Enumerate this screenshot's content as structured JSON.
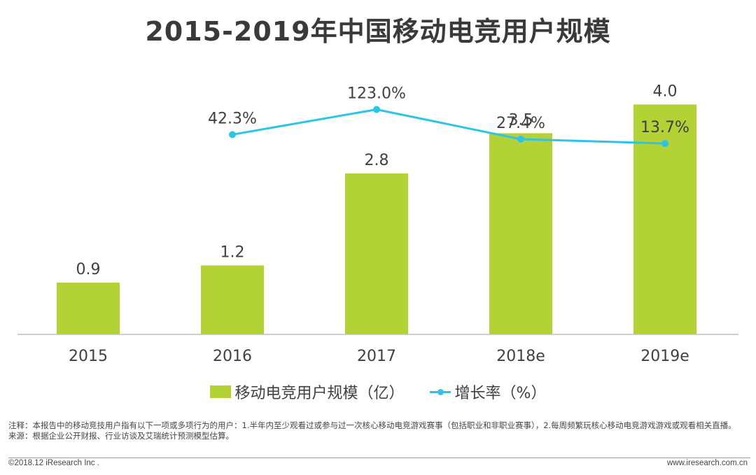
{
  "title": "2015-2019年中国移动电竞用户规模",
  "chart_data": {
    "type": "bar",
    "title": "2015-2019年中国移动电竞用户规模",
    "categories": [
      "2015",
      "2016",
      "2017",
      "2018e",
      "2019e"
    ],
    "series": [
      {
        "name": "移动电竞用户规模（亿）",
        "type": "bar",
        "values": [
          0.9,
          1.2,
          2.8,
          3.5,
          4.0
        ],
        "labels": [
          "0.9",
          "1.2",
          "2.8",
          "3.5",
          "4.0"
        ],
        "color": "#b3d235"
      },
      {
        "name": "增长率（%）",
        "type": "line",
        "values": [
          null,
          42.3,
          123.0,
          27.4,
          13.7
        ],
        "labels": [
          "",
          "42.3%",
          "123.0%",
          "27.4%",
          "13.7%"
        ],
        "color": "#2ec4e8"
      }
    ],
    "ylim": [
      0,
      4.6
    ],
    "y2lim": [
      -600,
      250
    ],
    "xlabel": "",
    "ylabel": "",
    "grid": false,
    "legend": "bottom"
  },
  "legend": {
    "bar_label": "移动电竞用户规模（亿）",
    "line_label": "增长率（%）"
  },
  "notes": {
    "line1": "注释：本报告中的移动竞技用户指有以下一项或多项行为的用户：1.半年内至少观看过或参与过一次核心移动电竞游戏赛事（包括职业和非职业赛事），2.每周频繁玩核心移动电竞游戏游戏或观看相关直播。",
    "line2": "来源：根据企业公开财报、行业访谈及艾瑞统计预测模型估算。"
  },
  "footer": {
    "copyright": "©2018.12 iResearch Inc .",
    "website": "www.iresearch.com.cn"
  }
}
